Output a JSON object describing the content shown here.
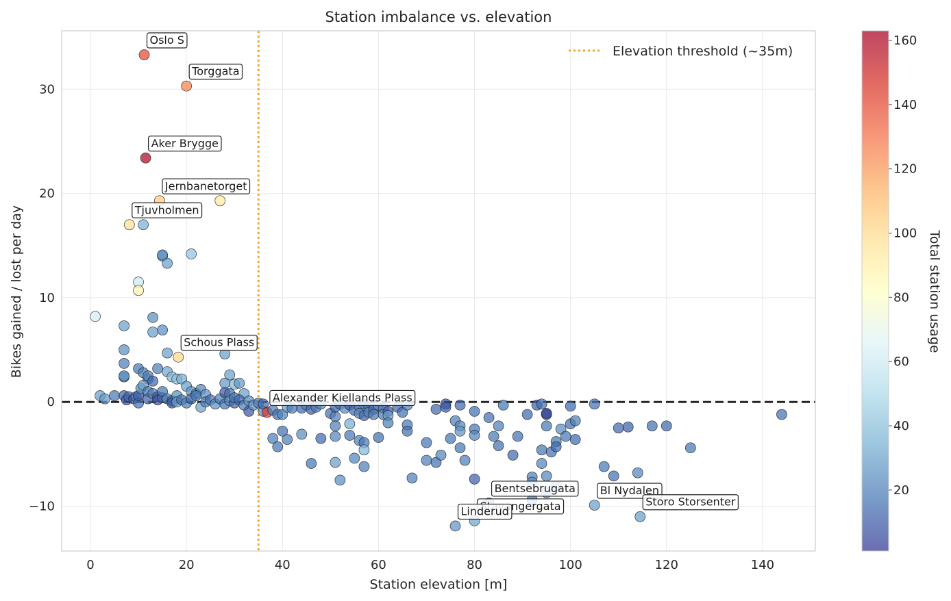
{
  "chart_data": {
    "type": "scatter",
    "title": "Station imbalance vs. elevation",
    "xlabel": "Station elevation [m]",
    "ylabel": "Bikes gained / lost per day",
    "xlim": [
      -6,
      151
    ],
    "ylim": [
      -14.3,
      35.6
    ],
    "xticks": [
      0,
      20,
      40,
      60,
      80,
      100,
      120,
      140
    ],
    "yticks": [
      -10,
      0,
      10,
      20,
      30
    ],
    "ytick_labels": [
      "−10",
      "0",
      "10",
      "20",
      "30"
    ],
    "grid": true,
    "legend": {
      "placement": "top-right",
      "entries": [
        "Elevation threshold (~35m)"
      ]
    },
    "threshold_x": 35,
    "zero_line_y": 0,
    "colors": {
      "threshold": "#f5a623",
      "zero_line": "#262626",
      "grid": "#e8e8e8",
      "frame": "#cccccc"
    },
    "colorbar": {
      "label": "Total station usage",
      "min": 1,
      "max": 163,
      "ticks": [
        20,
        40,
        60,
        80,
        100,
        120,
        140,
        160
      ],
      "colormap": "RdYlBu_r",
      "stops": [
        "#313695",
        "#4575b4",
        "#74add1",
        "#abd9e9",
        "#e0f3f8",
        "#ffffbf",
        "#fee090",
        "#fdae61",
        "#f46d43",
        "#d73027",
        "#a50026"
      ]
    },
    "annotations": [
      {
        "text": "Oslo S",
        "x": 11.2,
        "y": 33.3
      },
      {
        "text": "Torggata",
        "x": 20.0,
        "y": 30.3
      },
      {
        "text": "Aker Brygge",
        "x": 11.5,
        "y": 23.4
      },
      {
        "text": "Jernbanetorget",
        "x": 14.4,
        "y": 19.3
      },
      {
        "text": "Tjuvholmen",
        "x": 8.1,
        "y": 17.0
      },
      {
        "text": "Schous Plass",
        "x": 18.3,
        "y": 4.3
      },
      {
        "text": "Alexander Kiellands Plass",
        "x": 36.8,
        "y": -1.0
      },
      {
        "text": "Bentsebrugata",
        "x": 83.0,
        "y": -9.7
      },
      {
        "text": "Bl Nydalen",
        "x": 105.0,
        "y": -9.9
      },
      {
        "text": "Stavangergata",
        "x": 80.0,
        "y": -11.4
      },
      {
        "text": "Storo Storsenter",
        "x": 114.5,
        "y": -11.0
      },
      {
        "text": "Linderud",
        "x": 76.0,
        "y": -11.9
      }
    ],
    "points": [
      [
        11.2,
        33.3,
        140
      ],
      [
        20.0,
        30.3,
        125
      ],
      [
        11.5,
        23.4,
        160
      ],
      [
        14.4,
        19.3,
        105
      ],
      [
        27.0,
        19.3,
        92
      ],
      [
        8.1,
        17.0,
        98
      ],
      [
        11.0,
        17.0,
        35
      ],
      [
        21.0,
        14.2,
        42
      ],
      [
        15.0,
        14.0,
        28
      ],
      [
        15.0,
        14.1,
        24
      ],
      [
        16.0,
        13.3,
        30
      ],
      [
        10.0,
        11.5,
        60
      ],
      [
        10.0,
        10.7,
        88
      ],
      [
        1.0,
        8.2,
        62
      ],
      [
        7.0,
        7.3,
        30
      ],
      [
        13.0,
        8.1,
        25
      ],
      [
        15.0,
        6.9,
        24
      ],
      [
        13.0,
        6.7,
        30
      ],
      [
        18.3,
        4.3,
        100
      ],
      [
        7.0,
        5.0,
        25
      ],
      [
        16.0,
        4.7,
        30
      ],
      [
        28.0,
        4.6,
        30
      ],
      [
        7.0,
        3.7,
        20
      ],
      [
        7.0,
        2.4,
        20
      ],
      [
        7.0,
        2.5,
        25
      ],
      [
        10.0,
        3.2,
        18
      ],
      [
        11.0,
        2.8,
        20
      ],
      [
        12.0,
        2.2,
        16
      ],
      [
        12.0,
        2.5,
        22
      ],
      [
        13.0,
        2.0,
        14
      ],
      [
        14.0,
        3.2,
        20
      ],
      [
        16.0,
        2.9,
        32
      ],
      [
        17.0,
        2.4,
        38
      ],
      [
        18.0,
        2.2,
        40
      ],
      [
        19.0,
        2.2,
        34
      ],
      [
        20.0,
        1.5,
        30
      ],
      [
        21.0,
        1.0,
        26
      ],
      [
        22.0,
        0.8,
        20
      ],
      [
        23.0,
        1.2,
        22
      ],
      [
        24.0,
        0.7,
        26
      ],
      [
        28.0,
        1.8,
        28
      ],
      [
        29.0,
        2.6,
        30
      ],
      [
        30.0,
        1.7,
        38
      ],
      [
        31.0,
        1.8,
        28
      ],
      [
        32.0,
        0.8,
        30
      ],
      [
        2.0,
        0.6,
        30
      ],
      [
        3.0,
        0.3,
        28
      ],
      [
        5.0,
        0.6,
        18
      ],
      [
        7.0,
        0.6,
        12
      ],
      [
        7.5,
        0.2,
        10
      ],
      [
        8.0,
        0.5,
        14
      ],
      [
        9.0,
        0.3,
        9
      ],
      [
        9.5,
        0.5,
        20
      ],
      [
        10.0,
        -0.1,
        16
      ],
      [
        10.0,
        0.6,
        10
      ],
      [
        10.5,
        1.3,
        24
      ],
      [
        11.0,
        1.6,
        30
      ],
      [
        12.0,
        1.0,
        18
      ],
      [
        12.0,
        0.3,
        12
      ],
      [
        13.0,
        0.8,
        20
      ],
      [
        14.0,
        0.5,
        10
      ],
      [
        14.0,
        0.2,
        8
      ],
      [
        15.0,
        0.4,
        14
      ],
      [
        15.0,
        1.0,
        18
      ],
      [
        16.0,
        0.3,
        20
      ],
      [
        17.0,
        0.1,
        12
      ],
      [
        17.0,
        -0.1,
        10
      ],
      [
        18.0,
        0.6,
        24
      ],
      [
        18.0,
        0.0,
        30
      ],
      [
        19.0,
        0.2,
        16
      ],
      [
        20.0,
        -0.1,
        20
      ],
      [
        21.0,
        0.3,
        14
      ],
      [
        22.0,
        0.6,
        18
      ],
      [
        23.0,
        -0.5,
        30
      ],
      [
        24.0,
        0.0,
        20
      ],
      [
        25.0,
        0.2,
        16
      ],
      [
        26.0,
        -0.2,
        26
      ],
      [
        27.0,
        0.3,
        20
      ],
      [
        28.0,
        -0.2,
        18
      ],
      [
        28.0,
        0.9,
        10
      ],
      [
        29.0,
        0.8,
        16
      ],
      [
        29.0,
        0.1,
        22
      ],
      [
        30.0,
        -0.1,
        12
      ],
      [
        30.0,
        0.4,
        18
      ],
      [
        31.0,
        0.2,
        14
      ],
      [
        32.0,
        -0.3,
        20
      ],
      [
        33.0,
        -0.9,
        10
      ],
      [
        33.0,
        0.1,
        24
      ],
      [
        34.0,
        -0.3,
        28
      ],
      [
        35.0,
        -0.1,
        18
      ],
      [
        36.0,
        -0.9,
        24
      ],
      [
        36.0,
        -0.2,
        14
      ],
      [
        36.8,
        -1.0,
        145
      ],
      [
        38.0,
        -0.8,
        20
      ],
      [
        39.0,
        -1.2,
        16
      ],
      [
        40.0,
        -1.2,
        22
      ],
      [
        41.0,
        -0.5,
        30
      ],
      [
        42.0,
        -0.6,
        18
      ],
      [
        44.0,
        -0.6,
        14
      ],
      [
        45.0,
        -0.3,
        20
      ],
      [
        46.0,
        -0.7,
        12
      ],
      [
        47.0,
        -0.5,
        18
      ],
      [
        48.0,
        -0.2,
        22
      ],
      [
        50.0,
        -1.1,
        16
      ],
      [
        51.0,
        -1.4,
        20
      ],
      [
        51.0,
        -0.5,
        12
      ],
      [
        52.0,
        -0.2,
        18
      ],
      [
        53.0,
        -0.6,
        24
      ],
      [
        54.0,
        -0.3,
        10
      ],
      [
        55.0,
        -0.8,
        16
      ],
      [
        56.0,
        -0.4,
        20
      ],
      [
        56.0,
        -1.1,
        22
      ],
      [
        57.0,
        -0.2,
        18
      ],
      [
        57.0,
        -1.3,
        12
      ],
      [
        58.0,
        -0.5,
        16
      ],
      [
        58.0,
        -1.0,
        20
      ],
      [
        59.0,
        -0.7,
        14
      ],
      [
        59.0,
        -1.2,
        18
      ],
      [
        60.0,
        -0.3,
        24
      ],
      [
        61.0,
        -0.6,
        16
      ],
      [
        61.0,
        -1.2,
        20
      ],
      [
        62.0,
        -0.9,
        10
      ],
      [
        62.0,
        -1.3,
        30
      ],
      [
        64.0,
        -0.5,
        14
      ],
      [
        65.0,
        -1.0,
        16
      ],
      [
        66.0,
        -0.3,
        20
      ],
      [
        38.0,
        -3.5,
        20
      ],
      [
        39.0,
        -4.3,
        18
      ],
      [
        40.0,
        -2.8,
        16
      ],
      [
        41.0,
        -3.6,
        20
      ],
      [
        44.0,
        -3.1,
        24
      ],
      [
        46.0,
        -5.9,
        18
      ],
      [
        48.0,
        -3.5,
        14
      ],
      [
        51.0,
        -2.3,
        20
      ],
      [
        51.0,
        -3.3,
        22
      ],
      [
        51.0,
        -5.8,
        30
      ],
      [
        52.0,
        -7.5,
        24
      ],
      [
        54.0,
        -3.2,
        18
      ],
      [
        54.0,
        -2.1,
        34
      ],
      [
        55.0,
        -5.4,
        22
      ],
      [
        56.0,
        -3.7,
        20
      ],
      [
        57.0,
        -3.9,
        18
      ],
      [
        57.0,
        -4.6,
        38
      ],
      [
        57.0,
        -6.2,
        20
      ],
      [
        60.0,
        -3.4,
        16
      ],
      [
        62.0,
        -2.0,
        20
      ],
      [
        66.0,
        -2.2,
        18
      ],
      [
        66.0,
        -2.8,
        16
      ],
      [
        67.0,
        -7.3,
        20
      ],
      [
        70.0,
        -3.9,
        18
      ],
      [
        70.0,
        -5.6,
        20
      ],
      [
        72.0,
        -0.7,
        14
      ],
      [
        72.0,
        -5.8,
        16
      ],
      [
        73.0,
        -5.1,
        22
      ],
      [
        74.0,
        -0.2,
        8
      ],
      [
        74.0,
        -0.5,
        10
      ],
      [
        75.0,
        -3.5,
        18
      ],
      [
        76.0,
        -1.8,
        20
      ],
      [
        77.0,
        -0.3,
        14
      ],
      [
        77.0,
        -2.3,
        22
      ],
      [
        77.0,
        -2.8,
        26
      ],
      [
        77.0,
        -4.4,
        18
      ],
      [
        78.0,
        -5.6,
        20
      ],
      [
        80.0,
        -0.9,
        16
      ],
      [
        80.0,
        -2.6,
        18
      ],
      [
        80.0,
        -3.2,
        22
      ],
      [
        80.0,
        -7.4,
        12
      ],
      [
        83.0,
        -1.5,
        16
      ],
      [
        84.0,
        -3.3,
        18
      ],
      [
        85.0,
        -2.3,
        20
      ],
      [
        85.0,
        -4.2,
        16
      ],
      [
        86.0,
        -0.3,
        18
      ],
      [
        88.0,
        -5.1,
        14
      ],
      [
        89.0,
        -3.3,
        16
      ],
      [
        91.0,
        -1.2,
        14
      ],
      [
        92.0,
        -7.2,
        20
      ],
      [
        92.0,
        -7.7,
        24
      ],
      [
        92.0,
        -9.4,
        18
      ],
      [
        93.0,
        -0.3,
        12
      ],
      [
        94.0,
        -0.2,
        16
      ],
      [
        94.0,
        -4.6,
        18
      ],
      [
        94.0,
        -5.9,
        22
      ],
      [
        95.0,
        -1.2,
        6
      ],
      [
        95.0,
        -1.1,
        4
      ],
      [
        95.0,
        -2.3,
        18
      ],
      [
        95.0,
        -7.1,
        22
      ],
      [
        95.0,
        -8.7,
        26
      ],
      [
        96.0,
        -4.8,
        16
      ],
      [
        97.0,
        -3.8,
        18
      ],
      [
        97.0,
        -4.3,
        14
      ],
      [
        97.0,
        -8.1,
        20
      ],
      [
        98.0,
        -2.6,
        24
      ],
      [
        99.0,
        -3.3,
        18
      ],
      [
        100.0,
        -0.4,
        14
      ],
      [
        100.0,
        -2.1,
        16
      ],
      [
        101.0,
        -1.8,
        20
      ],
      [
        101.0,
        -3.6,
        14
      ],
      [
        105.0,
        -0.2,
        16
      ],
      [
        107.0,
        -6.2,
        18
      ],
      [
        109.0,
        -7.1,
        16
      ],
      [
        110.0,
        -2.5,
        14
      ],
      [
        112.0,
        -2.4,
        12
      ],
      [
        114.0,
        -6.8,
        22
      ],
      [
        117.0,
        -2.3,
        16
      ],
      [
        120.0,
        -2.3,
        14
      ],
      [
        125.0,
        -4.4,
        18
      ],
      [
        144.0,
        -1.2,
        16
      ],
      [
        83.0,
        -9.7,
        18
      ],
      [
        105.0,
        -9.9,
        30
      ],
      [
        80.0,
        -11.4,
        32
      ],
      [
        114.5,
        -11.0,
        30
      ],
      [
        76.0,
        -11.9,
        26
      ]
    ]
  }
}
